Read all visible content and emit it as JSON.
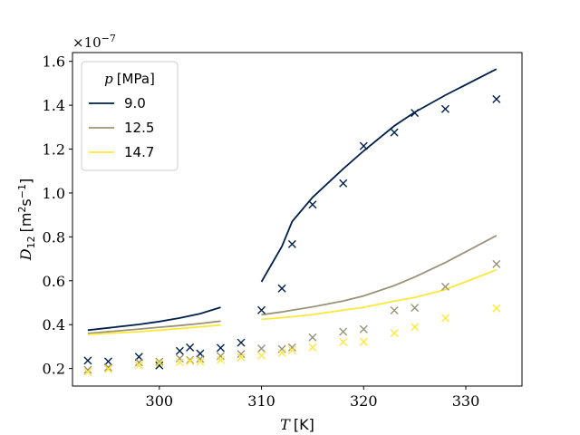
{
  "chart_data": {
    "type": "line",
    "xlabel": {
      "symbol": "T",
      "unit": "[K]"
    },
    "ylabel": {
      "symbol": "D",
      "subscript": "12",
      "unit_a": "[m",
      "sup_a": "2",
      "unit_b": "s",
      "sup_b": "−1",
      "unit_c": "]"
    },
    "y_multiplier": {
      "base": "×10",
      "exponent": "−7"
    },
    "xlim": [
      291.5,
      335.5
    ],
    "ylim": [
      0.12,
      1.64
    ],
    "x_ticks": [
      300,
      310,
      320,
      330
    ],
    "y_ticks": [
      0.2,
      0.4,
      0.6,
      0.8,
      1.0,
      1.2,
      1.4,
      1.6
    ],
    "x_tick_labels": [
      "300",
      "310",
      "320",
      "330"
    ],
    "y_tick_labels": [
      "0.2",
      "0.4",
      "0.6",
      "0.8",
      "1.0",
      "1.2",
      "1.4",
      "1.6"
    ],
    "legend": {
      "title_symbol": "p",
      "title_unit": "[MPa]",
      "position": "upper-left"
    },
    "series": [
      {
        "name": "9.0",
        "color": "#00204c",
        "line_segments": [
          {
            "x": [
              293,
              295,
              298,
              300,
              302,
              304,
              306
            ],
            "y": [
              0.375,
              0.385,
              0.401,
              0.414,
              0.43,
              0.45,
              0.479
            ]
          },
          {
            "x": [
              310,
              312,
              313,
              315,
              318,
              320,
              323,
              325,
              328,
              333
            ],
            "y": [
              0.595,
              0.757,
              0.87,
              0.98,
              1.11,
              1.192,
              1.306,
              1.368,
              1.446,
              1.565
            ]
          }
        ],
        "markers": {
          "x": [
            293,
            295,
            298,
            300,
            302,
            303,
            304,
            306,
            308,
            310,
            312,
            313,
            315,
            318,
            320,
            323,
            325,
            328,
            333
          ],
          "y": [
            0.236,
            0.232,
            0.253,
            0.214,
            0.28,
            0.296,
            0.268,
            0.294,
            0.318,
            0.466,
            0.565,
            0.767,
            0.947,
            1.044,
            1.214,
            1.276,
            1.365,
            1.383,
            1.428
          ]
        }
      },
      {
        "name": "12.5",
        "color": "#9b9378",
        "line_segments": [
          {
            "x": [
              293,
              295,
              298,
              300,
              302,
              304,
              306
            ],
            "y": [
              0.36,
              0.368,
              0.38,
              0.388,
              0.396,
              0.405,
              0.416
            ]
          },
          {
            "x": [
              310,
              312,
              313,
              315,
              318,
              320,
              323,
              325,
              328,
              333
            ],
            "y": [
              0.445,
              0.458,
              0.466,
              0.481,
              0.508,
              0.531,
              0.578,
              0.617,
              0.683,
              0.806
            ]
          }
        ],
        "markers": {
          "x": [
            293,
            295,
            298,
            300,
            302,
            303,
            304,
            306,
            308,
            310,
            312,
            313,
            315,
            318,
            320,
            323,
            325,
            328,
            333
          ],
          "y": [
            0.194,
            0.205,
            0.228,
            0.231,
            0.246,
            0.239,
            0.244,
            0.257,
            0.266,
            0.291,
            0.289,
            0.296,
            0.342,
            0.368,
            0.379,
            0.465,
            0.477,
            0.573,
            0.676
          ]
        }
      },
      {
        "name": "14.7",
        "color": "#fde838",
        "line_segments": [
          {
            "x": [
              293,
              295,
              298,
              300,
              302,
              304,
              306
            ],
            "y": [
              0.355,
              0.36,
              0.368,
              0.375,
              0.382,
              0.39,
              0.398
            ]
          },
          {
            "x": [
              310,
              312,
              313,
              315,
              318,
              320,
              323,
              325,
              328,
              333
            ],
            "y": [
              0.424,
              0.432,
              0.436,
              0.446,
              0.466,
              0.479,
              0.507,
              0.524,
              0.56,
              0.65
            ]
          }
        ],
        "markers": {
          "x": [
            293,
            295,
            298,
            300,
            302,
            303,
            304,
            306,
            308,
            310,
            312,
            313,
            315,
            318,
            320,
            323,
            325,
            328,
            333
          ],
          "y": [
            0.184,
            0.197,
            0.215,
            0.225,
            0.229,
            0.234,
            0.231,
            0.24,
            0.251,
            0.259,
            0.271,
            0.283,
            0.296,
            0.321,
            0.322,
            0.361,
            0.389,
            0.43,
            0.474
          ]
        }
      }
    ]
  }
}
